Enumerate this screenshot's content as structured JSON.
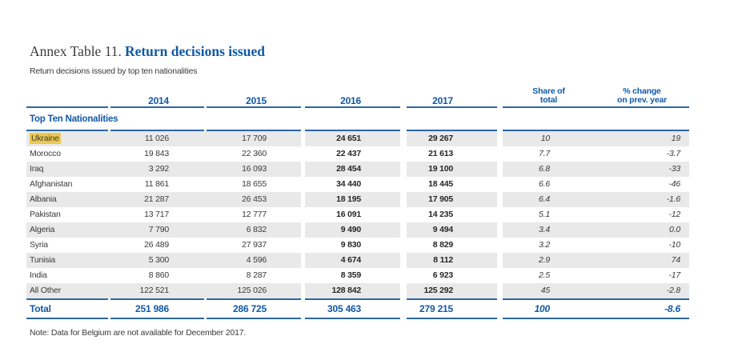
{
  "page": {
    "title_prefix": "Annex Table 11.",
    "title_main": "Return decisions issued",
    "subtitle": "Return decisions issued by top ten nationalities",
    "note": "Note: Data for Belgium are not available for December 2017."
  },
  "table": {
    "columns": {
      "y2014": "2014",
      "y2015": "2015",
      "y2016": "2016",
      "y2017": "2017",
      "share_line1": "Share of",
      "share_line2": "total",
      "pct_line1": "% change",
      "pct_line2": "on prev. year"
    },
    "section_header": "Top Ten Nationalities",
    "rows": [
      {
        "label": "Ukraine",
        "highlight": true,
        "y2014": "11 026",
        "y2015": "17 709",
        "y2016": "24 651",
        "y2017": "29 267",
        "share": "10",
        "pct_change": "19"
      },
      {
        "label": "Morocco",
        "highlight": false,
        "y2014": "19 843",
        "y2015": "22 360",
        "y2016": "22 437",
        "y2017": "21 613",
        "share": "7.7",
        "pct_change": "-3.7"
      },
      {
        "label": "Iraq",
        "highlight": false,
        "y2014": "3 292",
        "y2015": "16 093",
        "y2016": "28 454",
        "y2017": "19 100",
        "share": "6.8",
        "pct_change": "-33"
      },
      {
        "label": "Afghanistan",
        "highlight": false,
        "y2014": "11 861",
        "y2015": "18 655",
        "y2016": "34 440",
        "y2017": "18 445",
        "share": "6.6",
        "pct_change": "-46"
      },
      {
        "label": "Albania",
        "highlight": false,
        "y2014": "21 287",
        "y2015": "26 453",
        "y2016": "18 195",
        "y2017": "17 905",
        "share": "6.4",
        "pct_change": "-1.6"
      },
      {
        "label": "Pakistan",
        "highlight": false,
        "y2014": "13 717",
        "y2015": "12 777",
        "y2016": "16 091",
        "y2017": "14 235",
        "share": "5.1",
        "pct_change": "-12"
      },
      {
        "label": "Algeria",
        "highlight": false,
        "y2014": "7 790",
        "y2015": "6 832",
        "y2016": "9 490",
        "y2017": "9 494",
        "share": "3.4",
        "pct_change": "0.0"
      },
      {
        "label": "Syria",
        "highlight": false,
        "y2014": "26 489",
        "y2015": "27 937",
        "y2016": "9 830",
        "y2017": "8 829",
        "share": "3.2",
        "pct_change": "-10"
      },
      {
        "label": "Tunisia",
        "highlight": false,
        "y2014": "5 300",
        "y2015": "4 596",
        "y2016": "4 674",
        "y2017": "8 112",
        "share": "2.9",
        "pct_change": "74"
      },
      {
        "label": "India",
        "highlight": false,
        "y2014": "8 860",
        "y2015": "8 287",
        "y2016": "8 359",
        "y2017": "6 923",
        "share": "2.5",
        "pct_change": "-17"
      },
      {
        "label": "All Other",
        "highlight": false,
        "y2014": "122 521",
        "y2015": "125 026",
        "y2016": "128 842",
        "y2017": "125 292",
        "share": "45",
        "pct_change": "-2.8"
      }
    ],
    "total_row": {
      "label": "Total",
      "y2014": "251 986",
      "y2015": "286 725",
      "y2016": "305 463",
      "y2017": "279 215",
      "share": "100",
      "pct_change": "-8.6"
    }
  },
  "colors": {
    "accent_blue": "#1059a5",
    "rule_blue": "#2c67a5",
    "row_stripe": "#e9e9e9",
    "highlight_yellow": "#ecc84d",
    "text_dark": "#3a3a3a"
  }
}
